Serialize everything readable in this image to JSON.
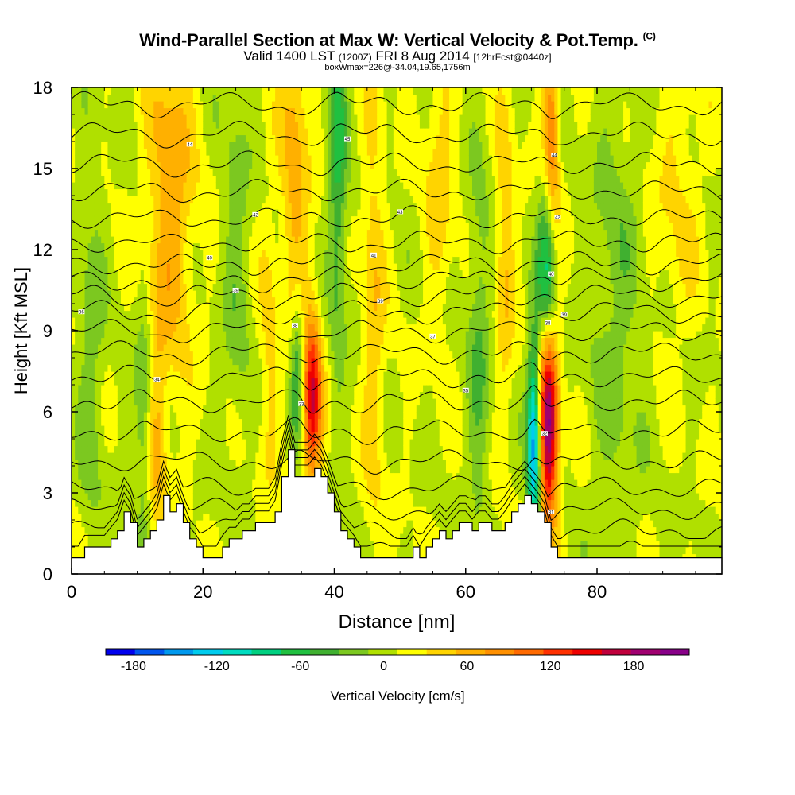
{
  "chart_data": {
    "type": "contour-cross-section",
    "title": "Wind-Parallel Section at Max W: Vertical Velocity & Pot.Temp.",
    "title_mark": "(C)",
    "subtitle_main": "Valid 1400 LST",
    "subtitle_utc": "(1200Z)",
    "subtitle_date": "FRI 8 Aug 2014",
    "subtitle_fcst": "[12hrFcst@0440z]",
    "subtitle2": "boxWmax=226@-34.04,19.65,1756m",
    "xlabel": "Distance [nm]",
    "ylabel": "Height [Kft MSL]",
    "xlim": [
      0,
      99
    ],
    "ylim": [
      0,
      18
    ],
    "xticks": [
      "0",
      "20",
      "40",
      "60",
      "80"
    ],
    "yticks": [
      "0",
      "3",
      "6",
      "9",
      "12",
      "15",
      "18"
    ],
    "colorbar": {
      "label": "Vertical Velocity [cm/s]",
      "ticks": [
        "-180",
        "-120",
        "-60",
        "0",
        "60",
        "120",
        "180"
      ],
      "bounds": [
        -200,
        220
      ],
      "colors": [
        "#0000ee",
        "#0055ee",
        "#0099ee",
        "#00ccee",
        "#00dcc0",
        "#00d080",
        "#20c040",
        "#40b030",
        "#7cc820",
        "#b0e000",
        "#ffff00",
        "#ffd400",
        "#ffb000",
        "#ff9000",
        "#ff6a00",
        "#ff3000",
        "#ee0000",
        "#c0003c",
        "#a00070",
        "#880088"
      ]
    },
    "terrain_kft": [
      [
        0,
        0.6
      ],
      [
        1,
        0.6
      ],
      [
        2,
        1.0
      ],
      [
        3,
        1.0
      ],
      [
        5,
        1.0
      ],
      [
        6,
        1.3
      ],
      [
        7,
        1.6
      ],
      [
        8,
        2.3
      ],
      [
        9,
        1.9
      ],
      [
        10,
        1.0
      ],
      [
        11,
        1.3
      ],
      [
        12,
        1.6
      ],
      [
        13,
        2.0
      ],
      [
        14,
        2.9
      ],
      [
        15,
        2.3
      ],
      [
        16,
        2.6
      ],
      [
        17,
        1.9
      ],
      [
        18,
        1.3
      ],
      [
        19,
        1.0
      ],
      [
        20,
        0.6
      ],
      [
        21,
        0.6
      ],
      [
        22,
        0.6
      ],
      [
        23,
        1.0
      ],
      [
        24,
        1.3
      ],
      [
        25,
        1.3
      ],
      [
        26,
        1.6
      ],
      [
        27,
        1.6
      ],
      [
        28,
        1.9
      ],
      [
        29,
        1.9
      ],
      [
        30,
        1.9
      ],
      [
        31,
        2.3
      ],
      [
        32,
        3.6
      ],
      [
        33,
        4.6
      ],
      [
        34,
        3.6
      ],
      [
        35,
        3.6
      ],
      [
        36,
        3.6
      ],
      [
        37,
        3.9
      ],
      [
        38,
        3.6
      ],
      [
        39,
        3.0
      ],
      [
        40,
        2.3
      ],
      [
        41,
        1.6
      ],
      [
        42,
        1.3
      ],
      [
        43,
        1.0
      ],
      [
        44,
        0.6
      ],
      [
        45,
        0.6
      ],
      [
        46,
        0.6
      ],
      [
        47,
        0.6
      ],
      [
        48,
        0.6
      ],
      [
        49,
        0.6
      ],
      [
        50,
        0.6
      ],
      [
        51,
        0.6
      ],
      [
        52,
        1.0
      ],
      [
        53,
        0.6
      ],
      [
        54,
        1.0
      ],
      [
        55,
        1.3
      ],
      [
        56,
        1.6
      ],
      [
        57,
        1.3
      ],
      [
        58,
        1.6
      ],
      [
        59,
        1.9
      ],
      [
        60,
        1.9
      ],
      [
        61,
        1.6
      ],
      [
        62,
        1.9
      ],
      [
        63,
        1.9
      ],
      [
        64,
        1.6
      ],
      [
        65,
        1.6
      ],
      [
        66,
        1.9
      ],
      [
        67,
        2.3
      ],
      [
        68,
        2.6
      ],
      [
        69,
        2.9
      ],
      [
        70,
        2.6
      ],
      [
        71,
        2.3
      ],
      [
        72,
        1.9
      ],
      [
        73,
        1.0
      ],
      [
        74,
        0.6
      ],
      [
        75,
        0.6
      ],
      [
        80,
        0.6
      ],
      [
        85,
        0.6
      ],
      [
        90,
        0.6
      ],
      [
        94,
        0.6
      ],
      [
        99,
        0.6
      ]
    ],
    "velocity_features": [
      {
        "x": 36.5,
        "z": 6.5,
        "w": 150,
        "sx": 1.1,
        "sz": 2.2
      },
      {
        "x": 34.5,
        "z": 7.5,
        "w": -90,
        "sx": 0.9,
        "sz": 2.0
      },
      {
        "x": 72.5,
        "z": 6.0,
        "w": 220,
        "sx": 1.1,
        "sz": 3.0
      },
      {
        "x": 70.5,
        "z": 5.0,
        "w": -180,
        "sx": 0.8,
        "sz": 2.6
      },
      {
        "x": 73.0,
        "z": 15.5,
        "w": 110,
        "sx": 0.9,
        "sz": 3.0
      },
      {
        "x": 72.5,
        "z": 11.0,
        "w": -150,
        "sx": 1.0,
        "sz": 2.8
      },
      {
        "x": 15.0,
        "z": 14.0,
        "w": 60,
        "sx": 2.5,
        "sz": 5.0
      },
      {
        "x": 34.0,
        "z": 15.0,
        "w": 55,
        "sx": 1.5,
        "sz": 5.0
      },
      {
        "x": 40.5,
        "z": 15.0,
        "w": -65,
        "sx": 1.0,
        "sz": 5.0
      },
      {
        "x": 13.0,
        "z": 5.0,
        "w": 45,
        "sx": 1.0,
        "sz": 3.0
      },
      {
        "x": 11.0,
        "z": 6.0,
        "w": -45,
        "sx": 1.0,
        "sz": 3.0
      },
      {
        "x": 46.0,
        "z": 10.0,
        "w": 40,
        "sx": 1.2,
        "sz": 6.0
      },
      {
        "x": 56.0,
        "z": 15.0,
        "w": 35,
        "sx": 1.5,
        "sz": 4.0
      },
      {
        "x": 62.0,
        "z": 8.0,
        "w": -40,
        "sx": 1.2,
        "sz": 5.0
      },
      {
        "x": 66.0,
        "z": 12.0,
        "w": 45,
        "sx": 1.0,
        "sz": 4.0
      },
      {
        "x": 3.0,
        "z": 8.0,
        "w": -30,
        "sx": 1.5,
        "sz": 5.0
      },
      {
        "x": 83.0,
        "z": 10.0,
        "w": -30,
        "sx": 3.0,
        "sz": 6.0
      },
      {
        "x": 92.0,
        "z": 14.0,
        "w": 25,
        "sx": 3.0,
        "sz": 4.0
      },
      {
        "x": 25.0,
        "z": 12.0,
        "w": -30,
        "sx": 1.5,
        "sz": 5.0
      },
      {
        "x": 30.0,
        "z": 8.0,
        "w": 30,
        "sx": 1.0,
        "sz": 4.0
      }
    ],
    "isentrope_base_heights_kft": [
      0.8,
      1.6,
      2.4,
      3.2,
      4.2,
      5.3,
      6.4,
      7.3,
      8.2,
      9.0,
      9.7,
      10.3,
      10.9,
      11.5,
      12.3,
      13.2,
      14.2,
      15.2,
      16.3,
      17.4
    ],
    "isentrope_labels": [
      {
        "x": 1.5,
        "z": 9.7,
        "text": "36"
      },
      {
        "x": 13.0,
        "z": 7.2,
        "text": "34"
      },
      {
        "x": 18.0,
        "z": 15.9,
        "text": "44"
      },
      {
        "x": 21.0,
        "z": 11.7,
        "text": "40"
      },
      {
        "x": 25.0,
        "z": 10.5,
        "text": "39"
      },
      {
        "x": 28.0,
        "z": 13.3,
        "text": "42"
      },
      {
        "x": 34.0,
        "z": 9.2,
        "text": "38"
      },
      {
        "x": 35.0,
        "z": 6.3,
        "text": "33"
      },
      {
        "x": 42.0,
        "z": 16.1,
        "text": "45"
      },
      {
        "x": 46.0,
        "z": 11.8,
        "text": "41"
      },
      {
        "x": 47.0,
        "z": 10.1,
        "text": "39"
      },
      {
        "x": 50.0,
        "z": 13.4,
        "text": "43"
      },
      {
        "x": 55.0,
        "z": 8.8,
        "text": "37"
      },
      {
        "x": 60.0,
        "z": 6.8,
        "text": "35"
      },
      {
        "x": 72.0,
        "z": 5.2,
        "text": "32"
      },
      {
        "x": 72.5,
        "z": 9.3,
        "text": "38"
      },
      {
        "x": 73.0,
        "z": 11.1,
        "text": "40"
      },
      {
        "x": 73.5,
        "z": 15.5,
        "text": "44"
      },
      {
        "x": 74.0,
        "z": 13.2,
        "text": "42"
      },
      {
        "x": 75.0,
        "z": 9.6,
        "text": "39"
      },
      {
        "x": 73.0,
        "z": 2.3,
        "text": "31"
      }
    ]
  }
}
